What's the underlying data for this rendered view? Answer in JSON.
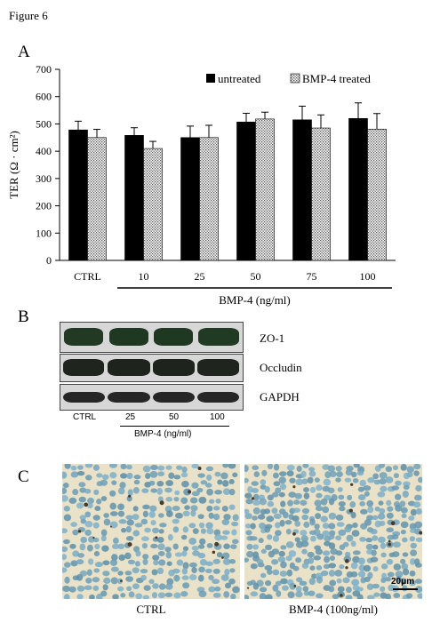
{
  "figure_title": "Figure 6",
  "panels": {
    "a": "A",
    "b": "B",
    "c": "C"
  },
  "chart_data": {
    "type": "bar",
    "categories": [
      "CTRL",
      "10",
      "25",
      "50",
      "75",
      "100"
    ],
    "ylabel": "TER (Ω · cm²)",
    "xlabel": "BMP-4 (ng/ml)",
    "ylim": [
      0,
      700
    ],
    "yticks": [
      0,
      100,
      200,
      300,
      400,
      500,
      600,
      700
    ],
    "legend_position": "top-right",
    "grid": false,
    "series": [
      {
        "name": "untreated",
        "values": [
          478,
          458,
          450,
          507,
          515,
          520
        ],
        "errors": [
          32,
          28,
          42,
          32,
          50,
          57
        ],
        "color": "#000000",
        "pattern": "solid"
      },
      {
        "name": "BMP-4 treated",
        "values": [
          450,
          410,
          450,
          518,
          485,
          481
        ],
        "errors": [
          30,
          26,
          45,
          25,
          48,
          57
        ],
        "color": "#ffffff",
        "pattern": "dotted"
      }
    ]
  },
  "western_blot": {
    "rows": [
      {
        "label": "ZO-1"
      },
      {
        "label": "Occludin"
      },
      {
        "label": "GAPDH"
      }
    ],
    "lanes": [
      "CTRL",
      "25",
      "50",
      "100"
    ],
    "treatment_label": "BMP-4 (ng/ml)"
  },
  "micrographs": {
    "left_caption": "CTRL",
    "right_caption": "BMP-4 (100ng/ml)",
    "scale_bar": "20μm"
  }
}
